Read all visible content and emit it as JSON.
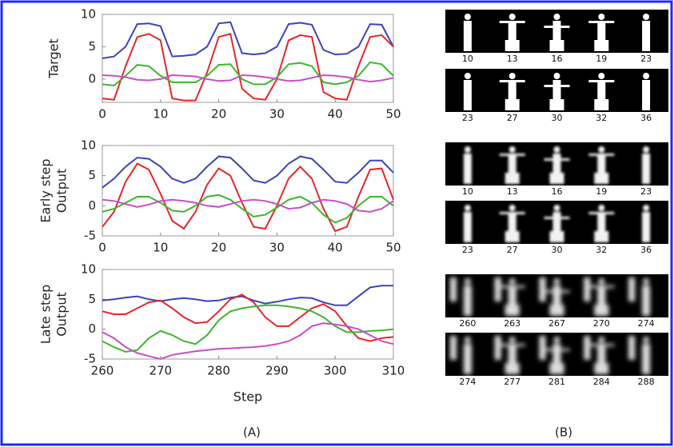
{
  "chart_data": [
    {
      "type": "line",
      "ylabel": [
        "Target"
      ],
      "x": [
        0,
        2,
        4,
        6,
        8,
        10,
        12,
        14,
        16,
        18,
        20,
        22,
        24,
        26,
        28,
        30,
        32,
        34,
        36,
        38,
        40,
        42,
        44,
        46,
        48,
        50
      ],
      "xlim": [
        0,
        50
      ],
      "xticks": [
        0,
        10,
        20,
        30,
        40,
        50
      ],
      "ylim": [
        -3.6,
        10
      ],
      "yticks": [
        0,
        5,
        10
      ],
      "series": [
        {
          "color": "#3b44b8",
          "values": [
            3.2,
            3.5,
            5,
            8.5,
            8.6,
            8.2,
            3.5,
            3.6,
            3.8,
            5,
            8.6,
            8.8,
            4,
            3.8,
            4,
            5,
            8.5,
            8.7,
            8.4,
            4.5,
            3.8,
            3.9,
            5,
            8.5,
            8.4,
            5
          ]
        },
        {
          "color": "#e8262a",
          "values": [
            -3,
            -3.2,
            2,
            6.5,
            7,
            6,
            -3,
            -3.3,
            -3.3,
            1,
            6.5,
            7,
            -1.5,
            -3,
            -3.2,
            0,
            6,
            6.8,
            6.5,
            -2,
            -3,
            -3.2,
            2,
            6.5,
            6.8,
            5
          ]
        },
        {
          "color": "#3fb62f",
          "values": [
            -0.8,
            -1,
            0.5,
            2.2,
            2,
            0.5,
            -0.5,
            -0.5,
            -0.5,
            0.5,
            2.2,
            2.3,
            0,
            -0.8,
            -0.8,
            0.3,
            2.3,
            2.5,
            2,
            -0.5,
            -0.8,
            -0.5,
            0.5,
            2.6,
            2.3,
            0.5
          ]
        },
        {
          "color": "#c74fc6",
          "values": [
            0.6,
            0.5,
            0.3,
            -0.1,
            -0.2,
            0,
            0.6,
            0.5,
            0.4,
            0,
            -0.3,
            -0.2,
            0.6,
            0.5,
            0.3,
            0,
            -0.3,
            -0.2,
            0.2,
            0.6,
            0.5,
            0.3,
            -0.1,
            -0.4,
            -0.2,
            0.2
          ]
        }
      ]
    },
    {
      "type": "line",
      "ylabel": [
        "Early step",
        "Output"
      ],
      "x": [
        0,
        2,
        4,
        6,
        8,
        10,
        12,
        14,
        16,
        18,
        20,
        22,
        24,
        26,
        28,
        30,
        32,
        34,
        36,
        38,
        40,
        42,
        44,
        46,
        48,
        50
      ],
      "xlim": [
        0,
        50
      ],
      "xticks": [
        0,
        10,
        20,
        30,
        40,
        50
      ],
      "ylim": [
        -5,
        10
      ],
      "yticks": [
        -5,
        0,
        5,
        10
      ],
      "series": [
        {
          "color": "#3b44b8",
          "values": [
            3,
            4.5,
            6.5,
            8,
            7.8,
            6.5,
            4.5,
            3.8,
            4.5,
            6.5,
            8.2,
            8,
            6.2,
            4.2,
            3.8,
            5,
            7,
            8.2,
            7.8,
            6,
            4,
            3.8,
            5.5,
            7.5,
            7.5,
            5.5
          ]
        },
        {
          "color": "#e8262a",
          "values": [
            -3.5,
            -1,
            4,
            7,
            6,
            2,
            -2.5,
            -3.8,
            -1,
            3.5,
            6.2,
            5,
            0.5,
            -3.5,
            -3.8,
            0,
            4.5,
            6.5,
            4.5,
            -0.5,
            -4.2,
            -3.5,
            1.5,
            6,
            6.2,
            1
          ]
        },
        {
          "color": "#3fb62f",
          "values": [
            -1,
            -0.5,
            0.5,
            1.5,
            1.5,
            0.5,
            -0.8,
            -1,
            0,
            1.5,
            1.8,
            1,
            -0.5,
            -1.8,
            -1.5,
            -0.3,
            1,
            1.5,
            0.5,
            -1.5,
            -2.8,
            -2,
            0,
            1.5,
            1.5,
            0
          ]
        },
        {
          "color": "#c74fc6",
          "values": [
            1,
            0.8,
            0.3,
            -0.2,
            0.2,
            0.8,
            1,
            0.8,
            0.5,
            0,
            -0.2,
            0.3,
            0.8,
            1,
            0.8,
            0.3,
            -0.5,
            -0.3,
            0.5,
            1,
            0.8,
            0.3,
            -0.8,
            -1,
            -0.5,
            0.8
          ]
        }
      ]
    },
    {
      "type": "line",
      "ylabel": [
        "Late step",
        "Output"
      ],
      "xlabel": "Step",
      "x": [
        260,
        262,
        264,
        266,
        268,
        270,
        272,
        274,
        276,
        278,
        280,
        282,
        284,
        286,
        288,
        290,
        292,
        294,
        296,
        298,
        300,
        302,
        304,
        306,
        308,
        310
      ],
      "xlim": [
        260,
        310
      ],
      "xticks": [
        260,
        270,
        280,
        290,
        300,
        310
      ],
      "ylim": [
        -5,
        10
      ],
      "yticks": [
        -5,
        0,
        5,
        10
      ],
      "series": [
        {
          "color": "#3b44b8",
          "values": [
            4.8,
            5,
            5.3,
            5.5,
            5,
            4.7,
            5,
            5.2,
            5,
            4.7,
            4.8,
            5.3,
            5.5,
            4.8,
            4.3,
            4.6,
            5,
            5.3,
            5.2,
            4.5,
            4,
            4,
            5.5,
            7,
            7.3,
            7.3
          ]
        },
        {
          "color": "#e8262a",
          "values": [
            3,
            2.5,
            2.5,
            3.5,
            4.5,
            4.8,
            3.5,
            2,
            1,
            1.2,
            3,
            5,
            5.8,
            4.5,
            2,
            0.5,
            0.5,
            2,
            3.5,
            4.2,
            3,
            0.5,
            -1.5,
            -2,
            -1.5,
            -1.3
          ]
        },
        {
          "color": "#3fb62f",
          "values": [
            -2,
            -3,
            -3.8,
            -3.5,
            -1.5,
            -0.3,
            -1,
            -2,
            -2.5,
            -1,
            1.5,
            3,
            3.5,
            3.8,
            4,
            4,
            3.8,
            3.5,
            3,
            2,
            0.5,
            -0.5,
            -0.5,
            -0.3,
            -0.2,
            0
          ]
        },
        {
          "color": "#c74fc6",
          "values": [
            -0.5,
            -1.5,
            -3,
            -4,
            -4.5,
            -5,
            -4.3,
            -4,
            -3.7,
            -3.5,
            -3.3,
            -3.2,
            -3.1,
            -3,
            -2.8,
            -2.5,
            -2,
            -1,
            0.5,
            1,
            0.8,
            0.5,
            0,
            -1,
            -2,
            -2.5
          ]
        }
      ]
    }
  ],
  "panel_b": {
    "strips": [
      {
        "labels": [
          10,
          13,
          16,
          19,
          23
        ]
      },
      {
        "labels": [
          23,
          27,
          30,
          32,
          36
        ]
      },
      {
        "labels": [
          10,
          13,
          16,
          19,
          23
        ]
      },
      {
        "labels": [
          23,
          27,
          30,
          32,
          36
        ]
      },
      {
        "labels": [
          260,
          263,
          267,
          270,
          274
        ]
      },
      {
        "labels": [
          274,
          277,
          281,
          284,
          288
        ]
      }
    ]
  },
  "captions": [
    "(A)",
    "(B)"
  ]
}
